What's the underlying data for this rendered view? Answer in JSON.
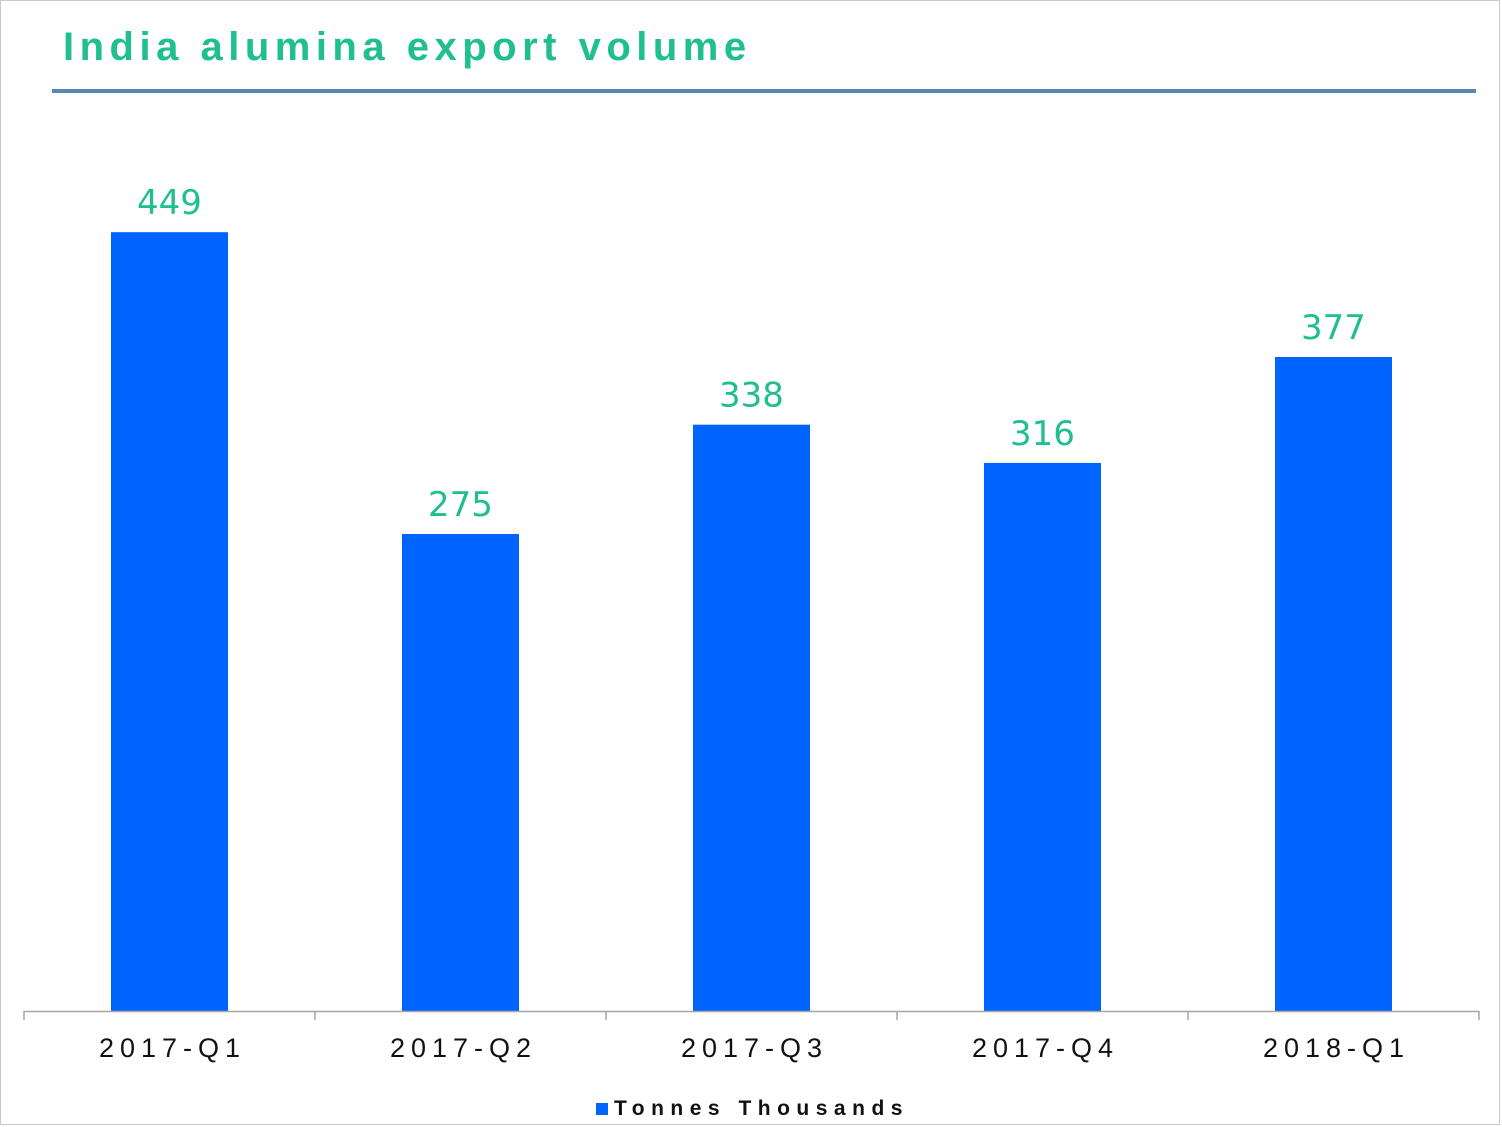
{
  "chart_data": {
    "type": "bar",
    "title": "India alumina export volume",
    "categories": [
      "2017-Q1",
      "2017-Q2",
      "2017-Q3",
      "2017-Q4",
      "2018-Q1"
    ],
    "series": [
      {
        "name": "Tonnes Thousands",
        "values": [
          449,
          275,
          338,
          316,
          377
        ],
        "color": "#0064ff"
      }
    ],
    "data_labels": [
      "449",
      "275",
      "338",
      "316",
      "377"
    ],
    "ylim": [
      0,
      520
    ],
    "xlabel": "",
    "ylabel": "",
    "grid": false,
    "legend_position": "bottom-center",
    "colors": {
      "title": "#1fbf8f",
      "data_label": "#1fbf8f",
      "title_rule": "#5a86b4",
      "axis": "#a6a6a6"
    }
  }
}
